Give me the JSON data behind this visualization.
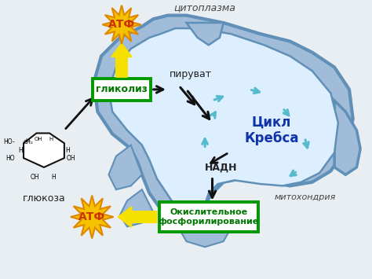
{
  "bg_color": "#e8eef2",
  "labels": {
    "cytoplasm": "цитоплазма",
    "mitochondria": "митохондрия",
    "glucose": "глюкоза",
    "glycolysis": "гликолиз",
    "pyruvate": "пируват",
    "krebs": "Цикл\nКребса",
    "nadh": "НАДН",
    "oxphos": "Окислительное\nфосфорилирование",
    "atp": "АТФ"
  },
  "colors": {
    "mito_outer": "#a0bcd8",
    "mito_inner": "#ddeeff",
    "mito_edge": "#6090b8",
    "glycolysis_box_edge": "#009900",
    "oxphos_box_edge": "#009900",
    "atp_star": "#f5c200",
    "atp_star_edge": "#e08800",
    "atp_text": "#cc3300",
    "arrow_yellow": "#f5e000",
    "arrow_yellow_edge": "#d4b800",
    "arrow_black": "#111111",
    "arrow_cyan": "#55bbcc",
    "krebs_text": "#1133aa",
    "glucose_line": "#111111",
    "text_dark": "#222222",
    "text_italic": "#444444"
  }
}
